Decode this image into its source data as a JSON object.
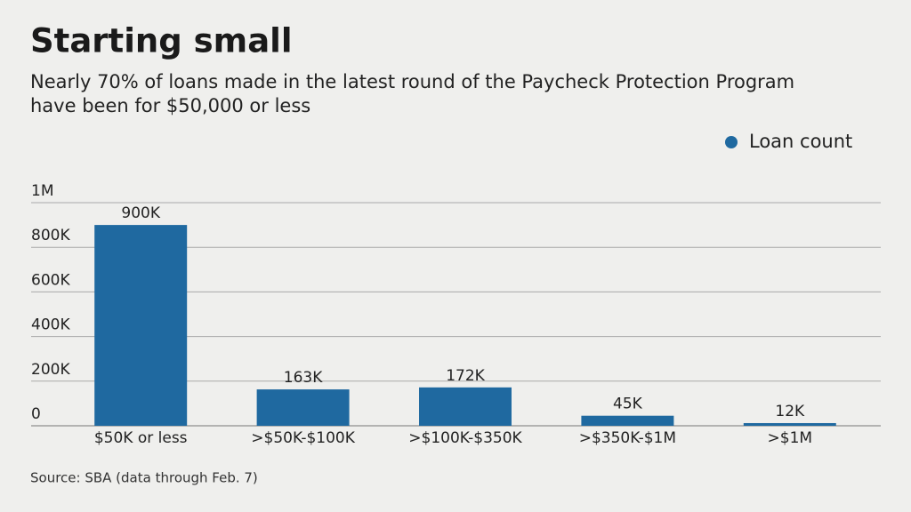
{
  "chart_data": {
    "type": "bar",
    "title": "Starting small",
    "subtitle": [
      "Nearly 70% of loans made in the latest round of the Paycheck Protection Program",
      "have been for $50,000 or less"
    ],
    "source": "Source: SBA (data through Feb. 7)",
    "categories": [
      "$50K or less",
      ">$50K-$100K",
      ">$100K-$350K",
      ">$350K-$1M",
      ">$1M"
    ],
    "series": [
      {
        "name": "Loan count",
        "color": "#1f69a0",
        "values": [
          900000,
          163000,
          172000,
          45000,
          12000
        ],
        "value_labels": [
          "900K",
          "163K",
          "172K",
          "45K",
          "12K"
        ]
      }
    ],
    "ylim": [
      0,
      1000000
    ],
    "yticks": [
      0,
      {
        "value": 200000,
        "label": "200K"
      },
      {
        "value": 400000,
        "label": "400K"
      },
      {
        "value": 600000,
        "label": "600K"
      },
      {
        "value": 800000,
        "label": "800K"
      },
      {
        "value": 1000000,
        "label": "1M"
      }
    ],
    "grid": true,
    "legend": "top-right"
  }
}
